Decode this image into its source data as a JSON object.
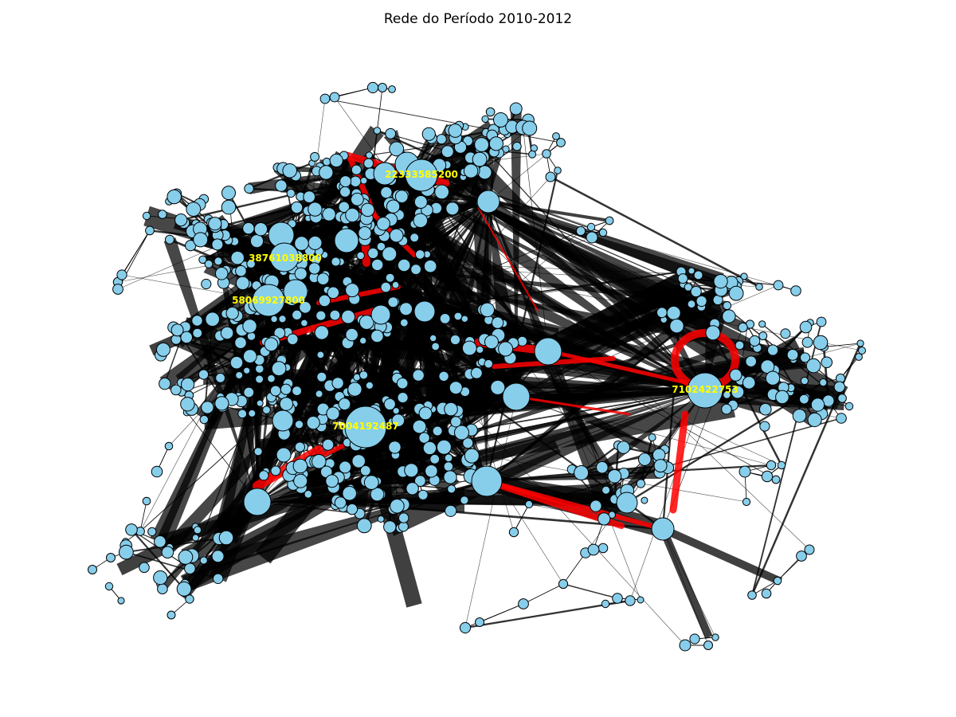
{
  "title": "Rede do Período 2010-2012",
  "colors": {
    "node_fill": "#87ceeb",
    "node_stroke": "#000000",
    "edge": "#000000",
    "highlight_edge": "#ff0000",
    "hub_label": "#ffff00",
    "background": "#ffffff"
  },
  "hubs": [
    {
      "id": "22333585200",
      "label": "22333585200"
    },
    {
      "id": "38761038800",
      "label": "38761038800"
    },
    {
      "id": "58069927800",
      "label": "58069927800"
    },
    {
      "id": "7004192487",
      "label": "7004192487"
    },
    {
      "id": "7102422753",
      "label": "7102422753"
    }
  ]
}
